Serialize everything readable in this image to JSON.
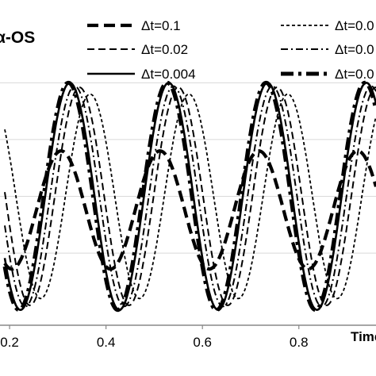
{
  "chart_data": {
    "type": "line",
    "title": "α-OS",
    "xlabel": "Time",
    "ylabel": "",
    "xlim": [
      0.19,
      0.96
    ],
    "ylim": [
      -1.1,
      1.1
    ],
    "x_ticks": [
      {
        "value": 0.2,
        "label": "0.2"
      },
      {
        "value": 0.4,
        "label": "0.4"
      },
      {
        "value": 0.6,
        "label": "0.6"
      },
      {
        "value": 0.8,
        "label": "0.8"
      }
    ],
    "y_gridlines": [
      -0.5,
      0,
      0.5,
      1.0
    ],
    "grid": "horizontal",
    "legend_position": "top",
    "series": [
      {
        "name": "Δt=0.1",
        "dash": "bold-dash",
        "amplitude": 0.52,
        "period": 0.205,
        "phase": 0.307,
        "offset": -0.12
      },
      {
        "name": "Δt=0.0",
        "dash": "short-dash",
        "amplitude": 0.9,
        "period": 0.205,
        "phase": 0.367,
        "offset": 0.0
      },
      {
        "name": "Δt=0.02",
        "dash": "dash",
        "amplitude": 0.96,
        "period": 0.205,
        "phase": 0.345,
        "offset": 0.0
      },
      {
        "name": "Δt=0.0",
        "dash": "dash-dot",
        "amplitude": 0.97,
        "period": 0.205,
        "phase": 0.335,
        "offset": 0.0
      },
      {
        "name": "Δt=0.004",
        "dash": "solid",
        "amplitude": 1.0,
        "period": 0.205,
        "phase": 0.325,
        "offset": 0.0
      },
      {
        "name": "Δt=0.0",
        "dash": "bold-dash-dot",
        "amplitude": 1.0,
        "period": 0.205,
        "phase": 0.322,
        "offset": 0.0
      }
    ]
  }
}
